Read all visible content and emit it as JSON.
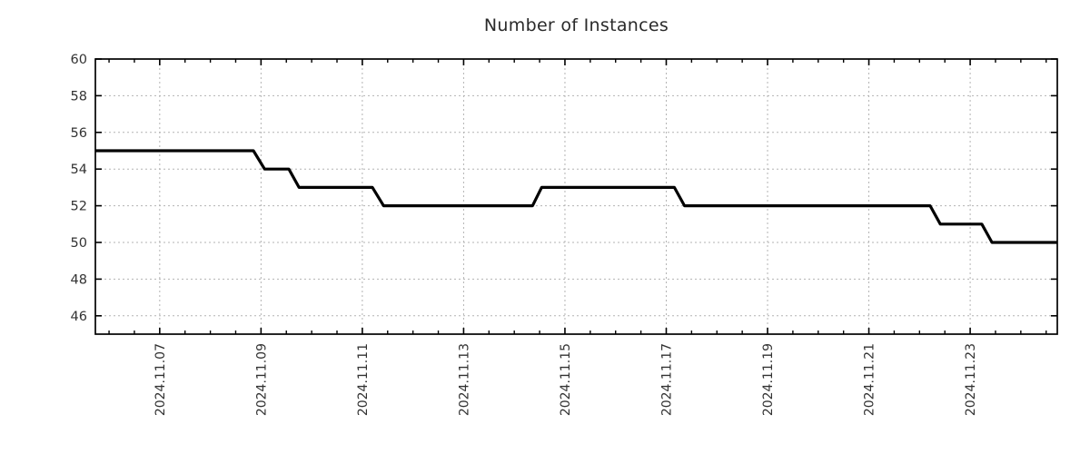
{
  "chart_data": {
    "type": "line",
    "subtype": "step-monitoring-timeseries",
    "title": "Number of Instances",
    "xlabel": "",
    "ylabel": "",
    "legend": null,
    "grid": true,
    "grid_color": "#b3b3b3",
    "axis_color": "#000000",
    "text_color": "#333333",
    "line_color": "#000000",
    "line_width": 3.2,
    "background_color": "#ffffff",
    "x_unit": "day of 2024-11 (fractional)",
    "xlim_days": [
      5.73,
      24.72
    ],
    "ylim": [
      45,
      60
    ],
    "y_ticks": [
      46,
      48,
      50,
      52,
      54,
      56,
      58,
      60
    ],
    "x_major_ticks": [
      {
        "day": 7,
        "label": "2024.11.07"
      },
      {
        "day": 9,
        "label": "2024.11.09"
      },
      {
        "day": 11,
        "label": "2024.11.11"
      },
      {
        "day": 13,
        "label": "2024.11.13"
      },
      {
        "day": 15,
        "label": "2024.11.15"
      },
      {
        "day": 17,
        "label": "2024.11.17"
      },
      {
        "day": 19,
        "label": "2024.11.19"
      },
      {
        "day": 21,
        "label": "2024.11.21"
      },
      {
        "day": 23,
        "label": "2024.11.23"
      }
    ],
    "x_minor_step_days": 0.5,
    "x_label_rotation_deg": -90,
    "series": [
      {
        "name": "Number of Instances",
        "points_day_value": [
          [
            5.73,
            55
          ],
          [
            8.85,
            55
          ],
          [
            9.07,
            54
          ],
          [
            9.55,
            54
          ],
          [
            9.75,
            53
          ],
          [
            11.2,
            53
          ],
          [
            11.42,
            52
          ],
          [
            14.36,
            52
          ],
          [
            14.54,
            53
          ],
          [
            17.16,
            53
          ],
          [
            17.36,
            52
          ],
          [
            22.21,
            52
          ],
          [
            22.41,
            51
          ],
          [
            23.23,
            51
          ],
          [
            23.43,
            50
          ],
          [
            24.72,
            50
          ]
        ]
      }
    ]
  }
}
